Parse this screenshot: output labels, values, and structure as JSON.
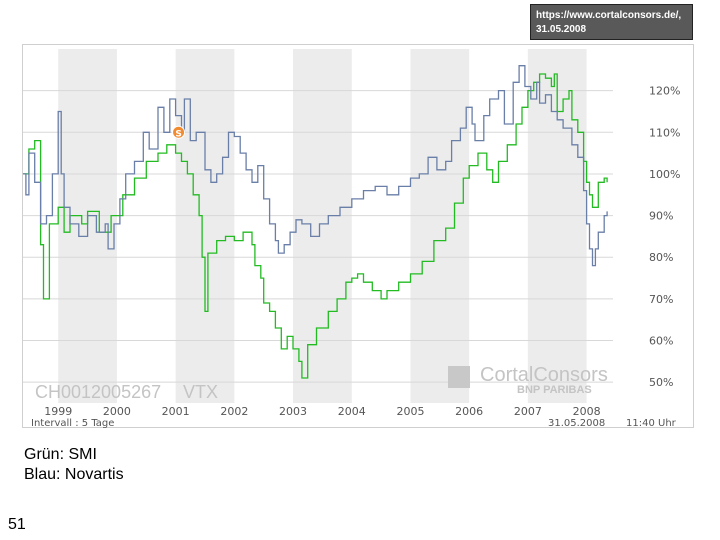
{
  "source_box": {
    "line1": "https://www.cortalconsors.de/,",
    "line2": "31.05.2008"
  },
  "captions": {
    "green": "Grün: SMI",
    "blue": "Blau: Novartis"
  },
  "page_number": "51",
  "brand": {
    "name": "CortalConsors",
    "sub": "BNP PARIBAS"
  },
  "instrument": {
    "id": "CH0012005267",
    "ticker": "VTX"
  },
  "footer": {
    "interval": "Intervall : 5 Tage",
    "date": "31.05.2008",
    "time": "11:40 Uhr"
  },
  "colors": {
    "smi": "#22bb22",
    "novartis": "#6a7fa8",
    "band": "#ececec",
    "grid": "#d8d8d8"
  },
  "chart_data": {
    "type": "line",
    "x_labels": [
      "1999",
      "2000",
      "2001",
      "2002",
      "2003",
      "2004",
      "2005",
      "2006",
      "2007",
      "2008"
    ],
    "y_ticks": [
      50,
      60,
      70,
      80,
      90,
      100,
      110,
      120
    ],
    "y_tick_labels": [
      "50%",
      "60%",
      "70%",
      "80%",
      "90%",
      "100%",
      "110%",
      "120%"
    ],
    "ylim": [
      45,
      130
    ],
    "xlim": [
      1998.4,
      2008.45
    ],
    "grid": true,
    "series": [
      {
        "name": "SMI",
        "color": "#22bb22",
        "points": [
          [
            1998.4,
            100
          ],
          [
            1998.5,
            106
          ],
          [
            1998.6,
            108
          ],
          [
            1998.7,
            83
          ],
          [
            1998.75,
            70
          ],
          [
            1998.85,
            88
          ],
          [
            1999.0,
            92
          ],
          [
            1999.1,
            86
          ],
          [
            1999.2,
            90
          ],
          [
            1999.4,
            88
          ],
          [
            1999.5,
            91
          ],
          [
            1999.7,
            86
          ],
          [
            1999.9,
            90
          ],
          [
            2000.1,
            95
          ],
          [
            2000.3,
            99
          ],
          [
            2000.5,
            103
          ],
          [
            2000.7,
            105
          ],
          [
            2000.85,
            107
          ],
          [
            2001.0,
            105
          ],
          [
            2001.1,
            103
          ],
          [
            2001.2,
            100
          ],
          [
            2001.3,
            95
          ],
          [
            2001.4,
            90
          ],
          [
            2001.45,
            80
          ],
          [
            2001.5,
            67
          ],
          [
            2001.55,
            81
          ],
          [
            2001.7,
            84
          ],
          [
            2001.85,
            85
          ],
          [
            2002.0,
            84
          ],
          [
            2002.15,
            86
          ],
          [
            2002.3,
            83
          ],
          [
            2002.35,
            78
          ],
          [
            2002.45,
            75
          ],
          [
            2002.5,
            69
          ],
          [
            2002.6,
            67
          ],
          [
            2002.7,
            63
          ],
          [
            2002.8,
            58
          ],
          [
            2002.9,
            61
          ],
          [
            2003.0,
            58
          ],
          [
            2003.1,
            55
          ],
          [
            2003.15,
            51
          ],
          [
            2003.25,
            59
          ],
          [
            2003.4,
            63
          ],
          [
            2003.6,
            67
          ],
          [
            2003.75,
            70
          ],
          [
            2003.9,
            74
          ],
          [
            2004.0,
            75
          ],
          [
            2004.1,
            76
          ],
          [
            2004.2,
            74
          ],
          [
            2004.35,
            72
          ],
          [
            2004.5,
            70
          ],
          [
            2004.6,
            72
          ],
          [
            2004.8,
            74
          ],
          [
            2005.0,
            76
          ],
          [
            2005.2,
            79
          ],
          [
            2005.4,
            84
          ],
          [
            2005.6,
            87
          ],
          [
            2005.75,
            93
          ],
          [
            2005.9,
            99
          ],
          [
            2006.0,
            102
          ],
          [
            2006.15,
            105
          ],
          [
            2006.3,
            101
          ],
          [
            2006.4,
            98
          ],
          [
            2006.5,
            103
          ],
          [
            2006.65,
            107
          ],
          [
            2006.8,
            112
          ],
          [
            2006.9,
            116
          ],
          [
            2007.0,
            120
          ],
          [
            2007.1,
            122
          ],
          [
            2007.2,
            124
          ],
          [
            2007.3,
            123
          ],
          [
            2007.4,
            121
          ],
          [
            2007.45,
            124
          ],
          [
            2007.5,
            115
          ],
          [
            2007.6,
            118
          ],
          [
            2007.7,
            120
          ],
          [
            2007.75,
            113
          ],
          [
            2007.85,
            110
          ],
          [
            2007.95,
            103
          ],
          [
            2008.0,
            98
          ],
          [
            2008.05,
            95
          ],
          [
            2008.1,
            92
          ],
          [
            2008.2,
            98
          ],
          [
            2008.3,
            99
          ],
          [
            2008.35,
            98
          ]
        ]
      },
      {
        "name": "Novartis",
        "color": "#6a7fa8",
        "points": [
          [
            1998.4,
            100
          ],
          [
            1998.45,
            95
          ],
          [
            1998.5,
            105
          ],
          [
            1998.6,
            98
          ],
          [
            1998.7,
            88
          ],
          [
            1998.8,
            90
          ],
          [
            1998.9,
            100
          ],
          [
            1999.0,
            115
          ],
          [
            1999.05,
            100
          ],
          [
            1999.1,
            92
          ],
          [
            1999.2,
            88
          ],
          [
            1999.35,
            85
          ],
          [
            1999.5,
            90
          ],
          [
            1999.65,
            86
          ],
          [
            1999.8,
            88
          ],
          [
            1999.85,
            82
          ],
          [
            1999.95,
            88
          ],
          [
            2000.05,
            94
          ],
          [
            2000.15,
            100
          ],
          [
            2000.3,
            103
          ],
          [
            2000.45,
            110
          ],
          [
            2000.55,
            106
          ],
          [
            2000.7,
            116
          ],
          [
            2000.8,
            110
          ],
          [
            2000.9,
            118
          ],
          [
            2001.0,
            114
          ],
          [
            2001.1,
            110
          ],
          [
            2001.15,
            118
          ],
          [
            2001.25,
            108
          ],
          [
            2001.35,
            110
          ],
          [
            2001.5,
            101
          ],
          [
            2001.6,
            98
          ],
          [
            2001.7,
            100
          ],
          [
            2001.8,
            104
          ],
          [
            2001.9,
            110
          ],
          [
            2002.0,
            109
          ],
          [
            2002.1,
            105
          ],
          [
            2002.2,
            101
          ],
          [
            2002.3,
            98
          ],
          [
            2002.4,
            102
          ],
          [
            2002.5,
            94
          ],
          [
            2002.6,
            88
          ],
          [
            2002.7,
            84
          ],
          [
            2002.75,
            81
          ],
          [
            2002.85,
            83
          ],
          [
            2002.95,
            86
          ],
          [
            2003.05,
            89
          ],
          [
            2003.15,
            88
          ],
          [
            2003.3,
            85
          ],
          [
            2003.45,
            88
          ],
          [
            2003.6,
            90
          ],
          [
            2003.8,
            92
          ],
          [
            2004.0,
            94
          ],
          [
            2004.2,
            96
          ],
          [
            2004.4,
            97
          ],
          [
            2004.6,
            95
          ],
          [
            2004.8,
            97
          ],
          [
            2005.0,
            99
          ],
          [
            2005.15,
            100
          ],
          [
            2005.3,
            104
          ],
          [
            2005.45,
            101
          ],
          [
            2005.6,
            103
          ],
          [
            2005.7,
            108
          ],
          [
            2005.85,
            111
          ],
          [
            2005.95,
            116
          ],
          [
            2006.05,
            112
          ],
          [
            2006.1,
            108
          ],
          [
            2006.25,
            114
          ],
          [
            2006.35,
            118
          ],
          [
            2006.5,
            120
          ],
          [
            2006.6,
            112
          ],
          [
            2006.75,
            122
          ],
          [
            2006.85,
            126
          ],
          [
            2006.95,
            121
          ],
          [
            2007.05,
            118
          ],
          [
            2007.15,
            122
          ],
          [
            2007.2,
            117
          ],
          [
            2007.3,
            119
          ],
          [
            2007.4,
            115
          ],
          [
            2007.5,
            113
          ],
          [
            2007.6,
            111
          ],
          [
            2007.75,
            107
          ],
          [
            2007.85,
            104
          ],
          [
            2007.95,
            96
          ],
          [
            2008.0,
            88
          ],
          [
            2008.05,
            82
          ],
          [
            2008.1,
            78
          ],
          [
            2008.15,
            82
          ],
          [
            2008.2,
            86
          ],
          [
            2008.3,
            90
          ],
          [
            2008.35,
            91
          ]
        ]
      }
    ]
  }
}
